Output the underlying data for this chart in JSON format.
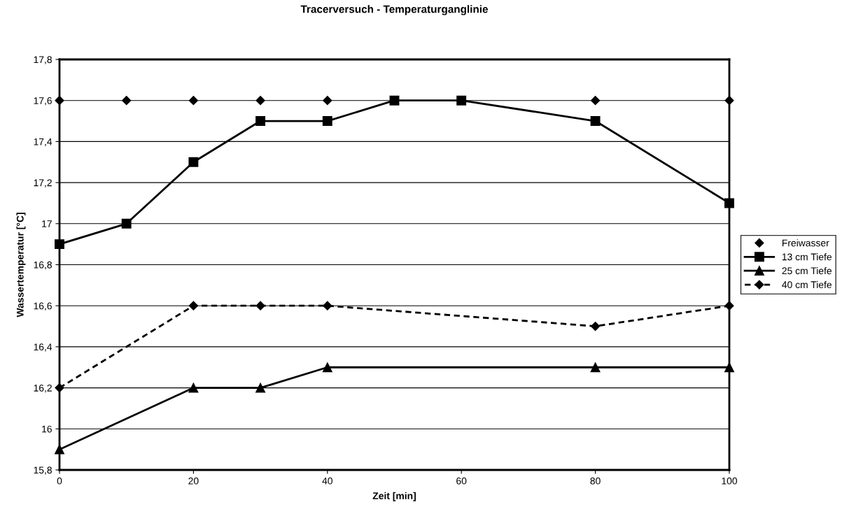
{
  "chart_data": {
    "type": "line",
    "title": "Tracerversuch - Temperaturganglinie",
    "xlabel": "Zeit [min]",
    "ylabel": "Wassertemperatur [°C]",
    "xlim": [
      0,
      100
    ],
    "xticks": [
      0,
      20,
      40,
      60,
      80,
      100
    ],
    "ylim": [
      15.8,
      17.8
    ],
    "yticks": [
      {
        "value": 15.8,
        "label": "15,8"
      },
      {
        "value": 16,
        "label": "16"
      },
      {
        "value": 16.2,
        "label": "16,2"
      },
      {
        "value": 16.4,
        "label": "16,4"
      },
      {
        "value": 16.6,
        "label": "16,6"
      },
      {
        "value": 16.8,
        "label": "16,8"
      },
      {
        "value": 17,
        "label": "17"
      },
      {
        "value": 17.2,
        "label": "17,2"
      },
      {
        "value": 17.4,
        "label": "17,4"
      },
      {
        "value": 17.6,
        "label": "17,6"
      },
      {
        "value": 17.8,
        "label": "17,8"
      }
    ],
    "grid": "y",
    "legend": "right",
    "series": [
      {
        "name": "Freiwasser",
        "type": "scatter",
        "marker": "diamond",
        "color": "#000000",
        "x": [
          0,
          10,
          20,
          30,
          40,
          80,
          100
        ],
        "values": [
          17.6,
          17.6,
          17.6,
          17.6,
          17.6,
          17.6,
          17.6
        ]
      },
      {
        "name": "13 cm Tiefe",
        "marker": "square",
        "line_style": "solid",
        "color": "#000000",
        "x": [
          0,
          10,
          20,
          30,
          40,
          50,
          60,
          80,
          100
        ],
        "values": [
          16.9,
          17.0,
          17.3,
          17.5,
          17.5,
          17.6,
          17.6,
          17.5,
          17.1
        ]
      },
      {
        "name": "25 cm Tiefe",
        "marker": "triangle",
        "line_style": "solid",
        "color": "#000000",
        "x": [
          0,
          20,
          30,
          40,
          80,
          100
        ],
        "values": [
          15.9,
          16.2,
          16.2,
          16.3,
          16.3,
          16.3
        ]
      },
      {
        "name": "40 cm Tiefe",
        "marker": "diamond",
        "line_style": "dashed",
        "color": "#000000",
        "x": [
          0,
          20,
          30,
          40,
          80,
          100
        ],
        "values": [
          16.2,
          16.6,
          16.6,
          16.6,
          16.5,
          16.6
        ]
      }
    ]
  }
}
